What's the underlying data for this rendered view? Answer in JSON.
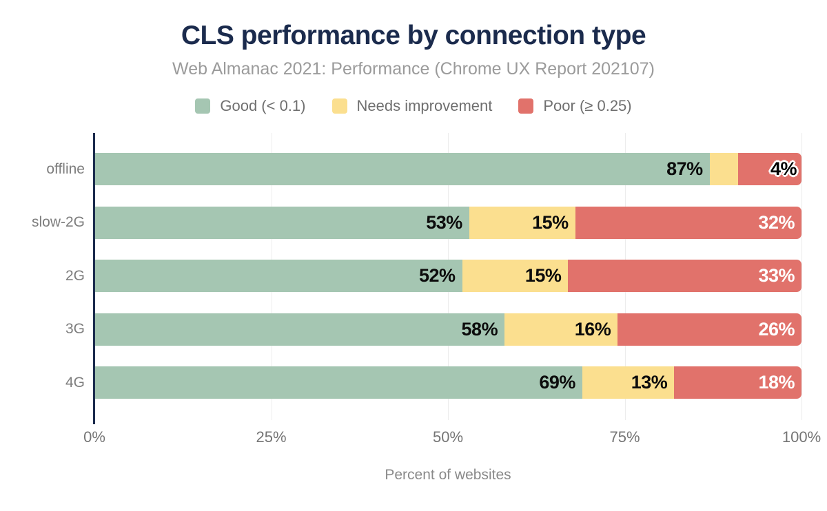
{
  "chart_data": {
    "type": "stacked-bar-horizontal",
    "title": "CLS performance by connection type",
    "subtitle": "Web Almanac 2021: Performance (Chrome UX Report 202107)",
    "xlabel": "Percent of websites",
    "categories": [
      "offline",
      "slow-2G",
      "2G",
      "3G",
      "4G"
    ],
    "series": [
      {
        "name": "Good (< 0.1)",
        "color": "#a5c6b2",
        "values": [
          87,
          53,
          52,
          58,
          69
        ]
      },
      {
        "name": "Needs improvement",
        "color": "#fbdf8f",
        "values": [
          4,
          15,
          15,
          16,
          13
        ]
      },
      {
        "name": "Poor (≥ 0.25)",
        "color": "#e1726b",
        "values": [
          9,
          32,
          33,
          26,
          18
        ]
      }
    ],
    "annotations": [
      [
        {
          "text": "87%",
          "style": "dark"
        },
        {
          "text": "4%",
          "style": "outline",
          "anchor": "bar-end"
        },
        null
      ],
      [
        {
          "text": "53%",
          "style": "dark"
        },
        {
          "text": "15%",
          "style": "dark"
        },
        {
          "text": "32%",
          "style": "light"
        }
      ],
      [
        {
          "text": "52%",
          "style": "dark"
        },
        {
          "text": "15%",
          "style": "dark"
        },
        {
          "text": "33%",
          "style": "light"
        }
      ],
      [
        {
          "text": "58%",
          "style": "dark"
        },
        {
          "text": "16%",
          "style": "dark"
        },
        {
          "text": "26%",
          "style": "light"
        }
      ],
      [
        {
          "text": "69%",
          "style": "dark"
        },
        {
          "text": "13%",
          "style": "dark"
        },
        {
          "text": "18%",
          "style": "light"
        }
      ]
    ],
    "xticks": [
      {
        "label": "0%",
        "value": 0
      },
      {
        "label": "25%",
        "value": 25
      },
      {
        "label": "50%",
        "value": 50
      },
      {
        "label": "75%",
        "value": 75
      },
      {
        "label": "100%",
        "value": 100
      }
    ],
    "xlim": [
      0,
      100
    ],
    "grid": true,
    "legend_position": "top",
    "colors": {
      "title_text": "#1b2b4d",
      "subtitle_text": "#9b9b9b",
      "legend_text": "#6f6f6f",
      "category_text": "#7d7d7d",
      "tick_text": "#757575",
      "axis": "#1b2b4d",
      "gridline": "#ececec",
      "label_dark": "#0c0c0c",
      "label_light": "#ffffff"
    }
  }
}
